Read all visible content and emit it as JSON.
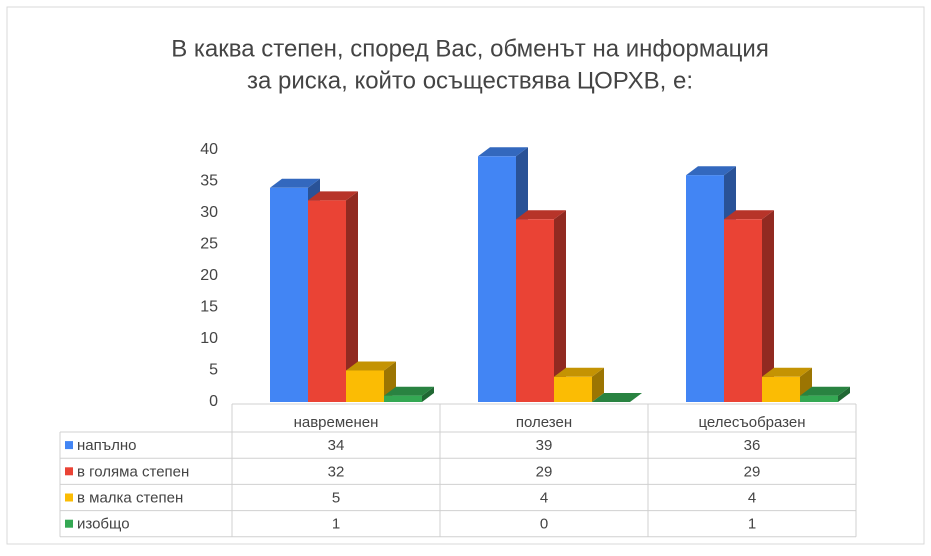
{
  "chart_data": {
    "type": "bar3d",
    "title": [
      "В каква степен, според Вас, обменът на информация",
      "за риска, който осъществява ЦОРХВ, е:"
    ],
    "categories": [
      "навременен",
      "полезен",
      "целесъобразен"
    ],
    "series": [
      {
        "name": "напълно",
        "color": "#4285f4",
        "values": [
          34,
          39,
          36
        ]
      },
      {
        "name": "в голяма степен",
        "color": "#ea4335",
        "values": [
          32,
          29,
          29
        ]
      },
      {
        "name": "в малка степен",
        "color": "#fbbc04",
        "values": [
          5,
          4,
          4
        ]
      },
      {
        "name": "изобщо",
        "color": "#34a853",
        "values": [
          1,
          0,
          1
        ]
      }
    ],
    "ylim": [
      0,
      40
    ],
    "yticks": [
      0,
      5,
      10,
      15,
      20,
      25,
      30,
      35,
      40
    ],
    "grid": false
  }
}
